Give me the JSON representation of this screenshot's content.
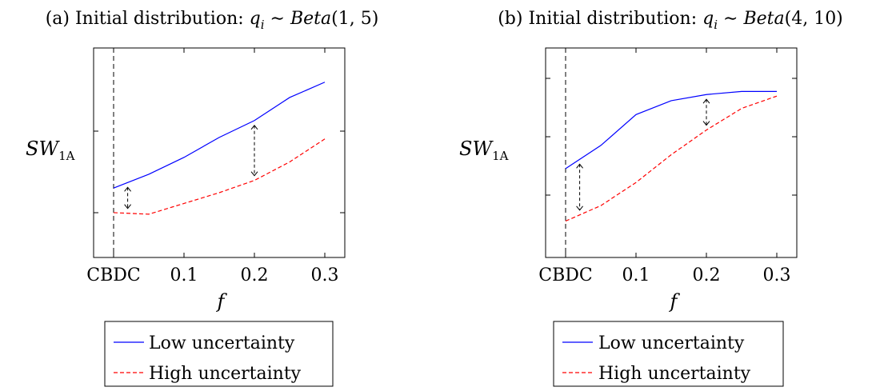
{
  "legend": {
    "low_label": "Low uncertainty",
    "high_label": "High uncertainty"
  },
  "colors": {
    "low": "#0000ff",
    "high": "#ff0000",
    "marker": "#000000"
  },
  "chart_data": [
    {
      "type": "line",
      "title_prefix": "(a) Initial distribution: ",
      "title_math_var": "q",
      "title_math_sub": "i",
      "title_math_sim": " ∼ ",
      "title_math_dist": "Beta",
      "title_math_args": "(1, 5)",
      "xlabel": "f",
      "ylabel_main": "SW",
      "ylabel_sub": "1A",
      "x_ticks": [
        "CBDC",
        "0.1",
        "0.2",
        "0.3"
      ],
      "x_tick_values": [
        0,
        0.1,
        0.2,
        0.3
      ],
      "xlim": [
        -0.03,
        0.33
      ],
      "ylim": [
        0,
        1
      ],
      "x": [
        0,
        0.05,
        0.1,
        0.15,
        0.2,
        0.25,
        0.3
      ],
      "series": [
        {
          "name": "Low uncertainty",
          "values": [
            0.28,
            0.37,
            0.48,
            0.61,
            0.72,
            0.87,
            0.97
          ]
        },
        {
          "name": "High uncertainty",
          "values": [
            0.12,
            0.11,
            0.18,
            0.25,
            0.33,
            0.45,
            0.6
          ]
        }
      ],
      "cbdc_line_x": 0,
      "arrows": [
        {
          "x": 0.02
        },
        {
          "x": 0.2
        }
      ]
    },
    {
      "type": "line",
      "title_prefix": "(b) Initial distribution: ",
      "title_math_var": "q",
      "title_math_sub": "i",
      "title_math_sim": " ∼ ",
      "title_math_dist": "Beta",
      "title_math_args": "(4, 10)",
      "xlabel": "f",
      "ylabel_main": "SW",
      "ylabel_sub": "1A",
      "x_ticks": [
        "CBDC",
        "0.1",
        "0.2",
        "0.3"
      ],
      "x_tick_values": [
        0,
        0.1,
        0.2,
        0.3
      ],
      "xlim": [
        -0.03,
        0.33
      ],
      "ylim": [
        0,
        1
      ],
      "x": [
        0,
        0.05,
        0.1,
        0.15,
        0.2,
        0.25,
        0.3
      ],
      "series": [
        {
          "name": "Low uncertainty",
          "values": [
            0.41,
            0.56,
            0.76,
            0.85,
            0.89,
            0.91,
            0.91
          ]
        },
        {
          "name": "High uncertainty",
          "values": [
            0.07,
            0.17,
            0.32,
            0.5,
            0.66,
            0.8,
            0.88
          ]
        }
      ],
      "cbdc_line_x": 0,
      "arrows": [
        {
          "x": 0.02
        },
        {
          "x": 0.2
        }
      ]
    }
  ]
}
